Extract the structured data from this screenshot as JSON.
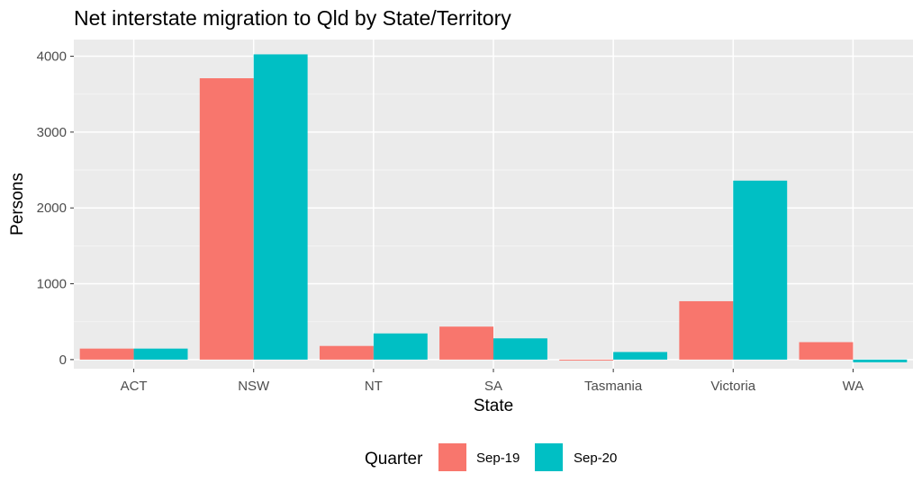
{
  "chart_data": {
    "type": "bar",
    "title": "Net interstate migration to Qld by State/Territory",
    "xlabel": "State",
    "ylabel": "Persons",
    "categories": [
      "ACT",
      "NSW",
      "NT",
      "SA",
      "Tasmania",
      "Victoria",
      "WA"
    ],
    "series": [
      {
        "name": "Sep-19",
        "color": "#F8766D",
        "values": [
          145,
          3710,
          180,
          435,
          -10,
          770,
          230
        ]
      },
      {
        "name": "Sep-20",
        "color": "#00BFC4",
        "values": [
          145,
          4025,
          345,
          280,
          100,
          2360,
          -35
        ]
      }
    ],
    "yticks": [
      0,
      1000,
      2000,
      3000,
      4000
    ],
    "ylim": [
      -120,
      4220
    ],
    "grid": true,
    "legend": {
      "title": "Quarter",
      "position": "bottom"
    }
  },
  "colors": {
    "panel_background": "#EBEBEB",
    "grid_major": "#FFFFFF"
  }
}
